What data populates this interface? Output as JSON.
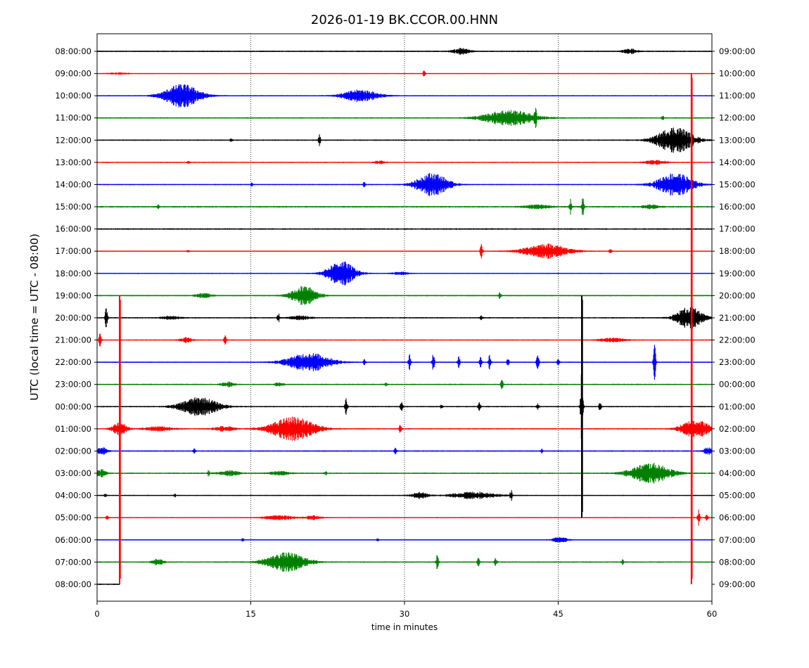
{
  "chart_data": {
    "type": "line",
    "title": "2026-01-19 BK.CCOR.00.HNN",
    "xlabel": "time in minutes",
    "ylabel": "UTC (local time = UTC - 08:00)",
    "xlim": [
      0,
      60
    ],
    "x_ticks": [
      0,
      15,
      30,
      45,
      60
    ],
    "x_tick_labels": [
      "0",
      "15",
      "30",
      "45",
      "60"
    ],
    "grid": "vertical dotted at 15, 30, 45",
    "colors": [
      "#000000",
      "#ff0000",
      "#0000ff",
      "#008000"
    ],
    "series": [
      {
        "left_label": "08:00:00",
        "right_label": "09:00:00",
        "color": "#000000",
        "noise": 0.12,
        "events": [
          [
            35.6,
            0.22,
            0.8
          ],
          [
            52.0,
            0.16,
            0.7
          ]
        ],
        "spikes": []
      },
      {
        "left_label": "09:00:00",
        "right_label": "10:00:00",
        "color": "#ff0000",
        "noise": 0.08,
        "events": [
          [
            2.1,
            0.06,
            1.0
          ]
        ],
        "spikes": [
          [
            31.9,
            0.2
          ]
        ]
      },
      {
        "left_label": "10:00:00",
        "right_label": "11:00:00",
        "color": "#0000ff",
        "noise": 0.1,
        "events": [
          [
            8.3,
            0.75,
            1.8
          ],
          [
            25.7,
            0.38,
            1.8
          ]
        ],
        "spikes": []
      },
      {
        "left_label": "11:00:00",
        "right_label": "12:00:00",
        "color": "#008000",
        "noise": 0.12,
        "events": [
          [
            40.2,
            0.5,
            2.5
          ]
        ],
        "spikes": [
          [
            42.8,
            0.5
          ],
          [
            55.2,
            0.12
          ]
        ]
      },
      {
        "left_label": "12:00:00",
        "right_label": "13:00:00",
        "color": "#000000",
        "noise": 0.12,
        "events": [
          [
            56.4,
            0.85,
            1.8
          ]
        ],
        "spikes": [
          [
            21.7,
            0.35
          ],
          [
            13.1,
            0.1
          ]
        ]
      },
      {
        "left_label": "13:00:00",
        "right_label": "14:00:00",
        "color": "#ff0000",
        "noise": 0.1,
        "events": [
          [
            27.6,
            0.14,
            0.5
          ],
          [
            54.5,
            0.14,
            1.0
          ]
        ],
        "spikes": [
          [
            8.9,
            0.1
          ]
        ]
      },
      {
        "left_label": "14:00:00",
        "right_label": "15:00:00",
        "color": "#0000ff",
        "noise": 0.1,
        "events": [
          [
            32.7,
            0.75,
            1.6
          ],
          [
            56.4,
            0.75,
            1.8
          ]
        ],
        "spikes": [
          [
            26.1,
            0.2
          ],
          [
            15.1,
            0.1
          ]
        ]
      },
      {
        "left_label": "15:00:00",
        "right_label": "16:00:00",
        "color": "#008000",
        "noise": 0.14,
        "events": [
          [
            43.0,
            0.12,
            1.2
          ],
          [
            54.0,
            0.12,
            0.8
          ]
        ],
        "spikes": [
          [
            46.2,
            0.5
          ],
          [
            47.4,
            0.6
          ],
          [
            6.0,
            0.12
          ]
        ]
      },
      {
        "left_label": "16:00:00",
        "right_label": "17:00:00",
        "color": "#000000",
        "noise": 0.14,
        "events": [],
        "spikes": []
      },
      {
        "left_label": "17:00:00",
        "right_label": "18:00:00",
        "color": "#ff0000",
        "noise": 0.1,
        "events": [
          [
            43.8,
            0.48,
            2.2
          ]
        ],
        "spikes": [
          [
            37.5,
            0.45
          ],
          [
            50.1,
            0.15
          ],
          [
            8.9,
            0.1
          ]
        ]
      },
      {
        "left_label": "18:00:00",
        "right_label": "19:00:00",
        "color": "#0000ff",
        "noise": 0.1,
        "events": [
          [
            23.8,
            0.8,
            1.4
          ],
          [
            29.6,
            0.1,
            0.7
          ]
        ],
        "spikes": []
      },
      {
        "left_label": "19:00:00",
        "right_label": "20:00:00",
        "color": "#008000",
        "noise": 0.12,
        "events": [
          [
            20.2,
            0.6,
            1.3
          ],
          [
            10.4,
            0.14,
            0.8
          ]
        ],
        "spikes": [
          [
            39.3,
            0.2
          ]
        ]
      },
      {
        "left_label": "20:00:00",
        "right_label": "21:00:00",
        "color": "#000000",
        "noise": 0.12,
        "events": [
          [
            57.8,
            0.7,
            1.3
          ],
          [
            7.2,
            0.1,
            1.0
          ],
          [
            19.8,
            0.12,
            1.0
          ]
        ],
        "spikes": [
          [
            0.9,
            0.75
          ],
          [
            17.7,
            0.3
          ],
          [
            37.5,
            0.2
          ]
        ]
      },
      {
        "left_label": "21:00:00",
        "right_label": "22:00:00",
        "color": "#ff0000",
        "noise": 0.1,
        "events": [
          [
            8.7,
            0.16,
            0.6
          ],
          [
            50.3,
            0.12,
            1.3
          ]
        ],
        "spikes": [
          [
            0.3,
            0.45
          ],
          [
            12.5,
            0.35
          ]
        ]
      },
      {
        "left_label": "22:00:00",
        "right_label": "23:00:00",
        "color": "#0000ff",
        "noise": 0.1,
        "events": [
          [
            20.7,
            0.6,
            2.2
          ]
        ],
        "spikes": [
          [
            30.5,
            0.5
          ],
          [
            32.8,
            0.6
          ],
          [
            35.3,
            0.35
          ],
          [
            37.4,
            0.4
          ],
          [
            38.3,
            0.45
          ],
          [
            40.1,
            0.25
          ],
          [
            43.0,
            0.55
          ],
          [
            54.4,
            1.1
          ],
          [
            26.1,
            0.2
          ],
          [
            45.0,
            0.2
          ]
        ]
      },
      {
        "left_label": "23:00:00",
        "right_label": "00:00:00",
        "color": "#008000",
        "noise": 0.12,
        "events": [
          [
            12.8,
            0.16,
            0.6
          ],
          [
            17.8,
            0.12,
            0.4
          ]
        ],
        "spikes": [
          [
            39.5,
            0.4
          ],
          [
            28.2,
            0.12
          ]
        ]
      },
      {
        "left_label": "00:00:00",
        "right_label": "01:00:00",
        "color": "#000000",
        "noise": 0.12,
        "events": [
          [
            10.0,
            0.6,
            1.9
          ]
        ],
        "spikes": [
          [
            24.3,
            0.5
          ],
          [
            29.7,
            0.3
          ],
          [
            37.3,
            0.25
          ],
          [
            43.0,
            0.2
          ],
          [
            49.1,
            0.4
          ],
          [
            33.6,
            0.2
          ],
          [
            47.3,
            2.5
          ]
        ]
      },
      {
        "left_label": "01:00:00",
        "right_label": "02:00:00",
        "color": "#ff0000",
        "noise": 0.12,
        "events": [
          [
            19.1,
            0.75,
            2.2
          ],
          [
            58.4,
            0.6,
            1.4
          ],
          [
            2.2,
            0.45,
            0.7
          ],
          [
            6.0,
            0.14,
            1.4
          ],
          [
            12.4,
            0.16,
            1.0
          ]
        ],
        "spikes": [
          [
            29.6,
            0.3
          ]
        ]
      },
      {
        "left_label": "02:00:00",
        "right_label": "03:00:00",
        "color": "#0000ff",
        "noise": 0.12,
        "events": [
          [
            0.5,
            0.25,
            0.5
          ],
          [
            59.6,
            0.22,
            0.4
          ]
        ],
        "spikes": [
          [
            9.5,
            0.15
          ],
          [
            29.1,
            0.2
          ],
          [
            43.4,
            0.12
          ]
        ]
      },
      {
        "left_label": "03:00:00",
        "right_label": "04:00:00",
        "color": "#008000",
        "noise": 0.12,
        "events": [
          [
            54.0,
            0.65,
            2.0
          ],
          [
            0.4,
            0.25,
            0.5
          ],
          [
            12.9,
            0.16,
            1.0
          ],
          [
            17.8,
            0.12,
            1.0
          ]
        ],
        "spikes": [
          [
            10.9,
            0.2
          ],
          [
            22.3,
            0.12
          ]
        ]
      },
      {
        "left_label": "04:00:00",
        "right_label": "05:00:00",
        "color": "#000000",
        "noise": 0.1,
        "events": [
          [
            31.5,
            0.2,
            0.8
          ],
          [
            36.8,
            0.22,
            2.2
          ]
        ],
        "spikes": [
          [
            40.4,
            0.35
          ],
          [
            0.8,
            0.12
          ],
          [
            7.6,
            0.1
          ]
        ]
      },
      {
        "left_label": "05:00:00",
        "right_label": "06:00:00",
        "color": "#ff0000",
        "noise": 0.1,
        "events": [
          [
            17.8,
            0.16,
            1.4
          ],
          [
            21.1,
            0.12,
            0.8
          ]
        ],
        "spikes": [
          [
            58.7,
            0.5
          ],
          [
            59.5,
            0.25
          ],
          [
            1.0,
            0.12
          ]
        ]
      },
      {
        "left_label": "06:00:00",
        "right_label": "07:00:00",
        "color": "#0000ff",
        "noise": 0.1,
        "events": [
          [
            45.2,
            0.18,
            0.7
          ]
        ],
        "spikes": [
          [
            14.2,
            0.12
          ],
          [
            27.4,
            0.1
          ]
        ]
      },
      {
        "left_label": "07:00:00",
        "right_label": "08:00:00",
        "color": "#008000",
        "noise": 0.12,
        "events": [
          [
            18.5,
            0.6,
            2.0
          ],
          [
            5.9,
            0.2,
            0.6
          ]
        ],
        "spikes": [
          [
            33.2,
            0.5
          ],
          [
            37.2,
            0.25
          ],
          [
            38.9,
            0.25
          ],
          [
            51.3,
            0.15
          ]
        ]
      },
      {
        "left_label": "08:00:00",
        "right_label": "09:00:00",
        "color": "#000000",
        "noise": 0.12,
        "length": 2.2,
        "events": [],
        "spikes": []
      }
    ],
    "long_spikes": [
      {
        "x": 2.2,
        "from_trace": 11,
        "to_trace": 24,
        "color": "#ff0000"
      },
      {
        "x": 58.0,
        "from_trace": 1,
        "to_trace": 24,
        "color": "#ff0000"
      },
      {
        "x": 47.3,
        "from_trace": 11,
        "to_trace": 21,
        "color": "#000000"
      }
    ]
  }
}
